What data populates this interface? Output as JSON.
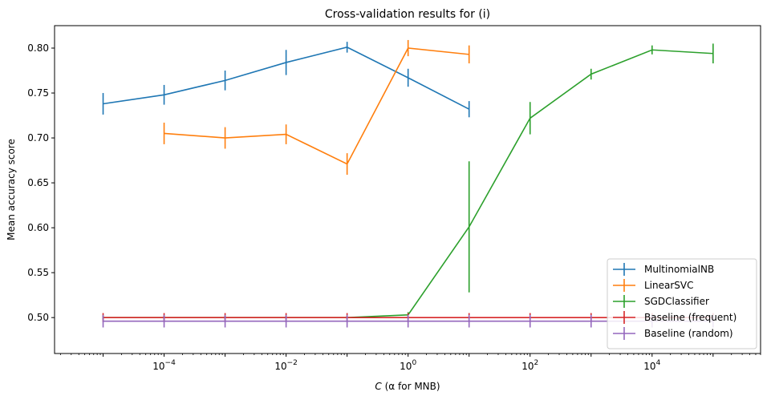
{
  "chart_data": {
    "type": "line",
    "title": "Cross-validation results for (i)",
    "xlabel": {
      "pre": "C",
      "mid": " (α",
      "post": " for MNB)"
    },
    "ylabel": "Mean accuracy score",
    "xscale": "log",
    "xlim": [
      1.6e-06,
      600000.0
    ],
    "ylim": [
      0.46,
      0.825
    ],
    "xticks": [
      {
        "base": "10",
        "exp": "−4",
        "value": 0.0001
      },
      {
        "base": "10",
        "exp": "−2",
        "value": 0.01
      },
      {
        "base": "10",
        "exp": "0",
        "value": 1
      },
      {
        "base": "10",
        "exp": "2",
        "value": 100
      },
      {
        "base": "10",
        "exp": "4",
        "value": 10000
      }
    ],
    "yticks": [
      {
        "label": "0.50",
        "value": 0.5
      },
      {
        "label": "0.55",
        "value": 0.55
      },
      {
        "label": "0.60",
        "value": 0.6
      },
      {
        "label": "0.65",
        "value": 0.65
      },
      {
        "label": "0.70",
        "value": 0.7
      },
      {
        "label": "0.75",
        "value": 0.75
      },
      {
        "label": "0.80",
        "value": 0.8
      }
    ],
    "legend_position": "lower-right",
    "series": [
      {
        "name": "MultinomialNB",
        "color": "#1f77b4",
        "x": [
          1e-05,
          0.0001,
          0.001,
          0.01,
          0.1,
          1,
          10
        ],
        "y": [
          0.738,
          0.748,
          0.764,
          0.784,
          0.801,
          0.767,
          0.732
        ],
        "err": [
          0.012,
          0.011,
          0.011,
          0.014,
          0.006,
          0.01,
          0.009
        ]
      },
      {
        "name": "LinearSVC",
        "color": "#ff7f0e",
        "x": [
          0.0001,
          0.001,
          0.01,
          0.1,
          1,
          10
        ],
        "y": [
          0.705,
          0.7,
          0.704,
          0.671,
          0.8,
          0.793
        ],
        "err": [
          0.012,
          0.012,
          0.011,
          0.012,
          0.009,
          0.01
        ]
      },
      {
        "name": "SGDClassifier",
        "color": "#2ca02c",
        "x": [
          1e-05,
          0.0001,
          0.001,
          0.01,
          0.1,
          1,
          10,
          100,
          1000,
          10000,
          100000
        ],
        "y": [
          0.5,
          0.5,
          0.5,
          0.5,
          0.5,
          0.503,
          0.601,
          0.722,
          0.771,
          0.798,
          0.794
        ],
        "err": [
          0.002,
          0.002,
          0.002,
          0.002,
          0.002,
          0.003,
          0.073,
          0.018,
          0.006,
          0.005,
          0.011
        ]
      },
      {
        "name": "Baseline (frequent)",
        "color": "#d62728",
        "x": [
          1e-05,
          0.0001,
          0.001,
          0.01,
          0.1,
          1,
          10,
          100,
          1000,
          10000,
          100000
        ],
        "y": [
          0.5,
          0.5,
          0.5,
          0.5,
          0.5,
          0.5,
          0.5,
          0.5,
          0.5,
          0.5,
          0.5
        ],
        "err": [
          0.005,
          0.005,
          0.005,
          0.005,
          0.005,
          0.005,
          0.005,
          0.005,
          0.005,
          0.005,
          0.005
        ]
      },
      {
        "name": "Baseline (random)",
        "color": "#9467bd",
        "x": [
          1e-05,
          0.0001,
          0.001,
          0.01,
          0.1,
          1,
          10,
          100,
          1000,
          10000,
          100000
        ],
        "y": [
          0.496,
          0.496,
          0.496,
          0.496,
          0.496,
          0.496,
          0.496,
          0.496,
          0.496,
          0.496,
          0.496
        ],
        "err": [
          0.007,
          0.007,
          0.007,
          0.007,
          0.007,
          0.007,
          0.007,
          0.007,
          0.007,
          0.007,
          0.007
        ]
      }
    ]
  }
}
